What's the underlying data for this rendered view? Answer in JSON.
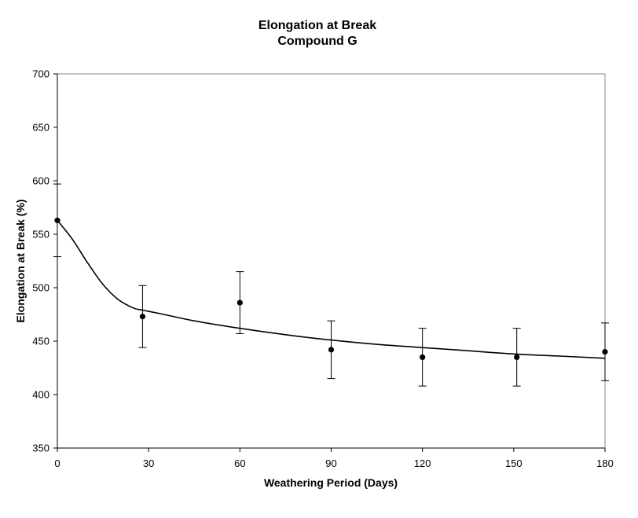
{
  "chart_data": {
    "type": "scatter",
    "title": "Elongation at Break",
    "subtitle": "Compound G",
    "xlabel": "Weathering Period (Days)",
    "ylabel": "Elongation at Break (%)",
    "xlim": [
      0,
      180
    ],
    "ylim": [
      350,
      700
    ],
    "x_ticks": [
      0,
      30,
      60,
      90,
      120,
      150,
      180
    ],
    "y_ticks": [
      350,
      400,
      450,
      500,
      550,
      600,
      650,
      700
    ],
    "grid": false,
    "legend": "none",
    "series": [
      {
        "x": [
          0,
          28,
          60,
          90,
          120,
          151,
          180
        ],
        "y": [
          563,
          473,
          486,
          442,
          435,
          435,
          440
        ],
        "error": [
          34,
          29,
          29,
          27,
          27,
          27,
          27
        ],
        "marker": "circle",
        "color": "#000000"
      }
    ],
    "trendline": {
      "x": [
        0,
        5,
        10,
        15,
        20,
        25,
        28,
        35,
        45,
        60,
        75,
        90,
        105,
        120,
        135,
        150,
        165,
        180
      ],
      "y": [
        563,
        545,
        523,
        503,
        489,
        481,
        479,
        475,
        469,
        462,
        456,
        451,
        447,
        444,
        441,
        438,
        436,
        434
      ],
      "color": "#000000"
    }
  }
}
